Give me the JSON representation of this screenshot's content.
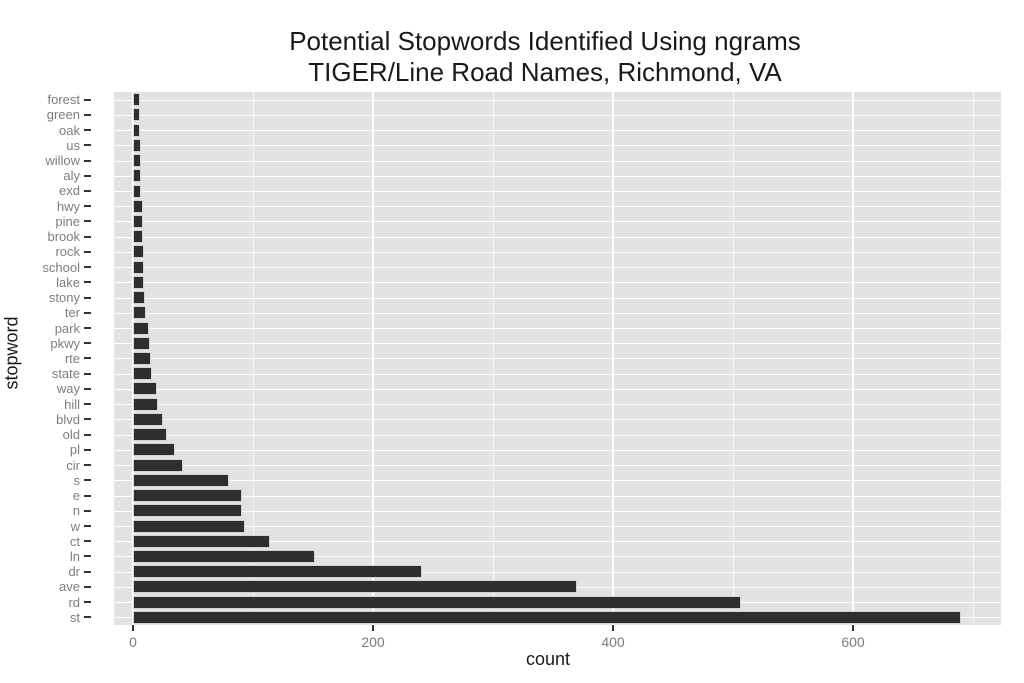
{
  "chart_data": {
    "type": "bar",
    "orientation": "horizontal",
    "title": "Potential Stopwords Identified Using ngrams",
    "subtitle": "TIGER/Line Road Names, Richmond, VA",
    "xlabel": "count",
    "ylabel": "stopword",
    "categories": [
      "forest",
      "green",
      "oak",
      "us",
      "willow",
      "aly",
      "exd",
      "hwy",
      "pine",
      "brook",
      "rock",
      "school",
      "lake",
      "stony",
      "ter",
      "park",
      "pkwy",
      "rte",
      "state",
      "way",
      "hill",
      "blvd",
      "old",
      "pl",
      "cir",
      "s",
      "e",
      "n",
      "w",
      "ct",
      "ln",
      "dr",
      "ave",
      "rd",
      "st"
    ],
    "values": [
      6,
      6,
      6,
      7,
      7,
      7,
      7,
      8,
      8,
      8,
      9,
      9,
      9,
      10,
      11,
      13,
      14,
      15,
      16,
      20,
      21,
      25,
      28,
      35,
      42,
      80,
      91,
      91,
      93,
      114,
      152,
      241,
      370,
      507,
      690
    ],
    "xlim": [
      -16,
      723
    ],
    "x_ticks": [
      {
        "label": "0",
        "value": 0
      },
      {
        "label": "200",
        "value": 200
      },
      {
        "label": "400",
        "value": 400
      },
      {
        "label": "600",
        "value": 600
      }
    ],
    "x_minor_gridlines": [
      100,
      300,
      500,
      700
    ],
    "grid": true,
    "legend": "none",
    "colors": {
      "bar_fill": "#2e2e2e",
      "bar_border": "#d4d4d4",
      "panel_background": "#e2e2e2",
      "gridline": "#ffffff",
      "tick_label": "#7e7e7e",
      "axis_title": "#1a1a1a",
      "title": "#1a1a1a",
      "tick_mark": "#333333"
    }
  }
}
